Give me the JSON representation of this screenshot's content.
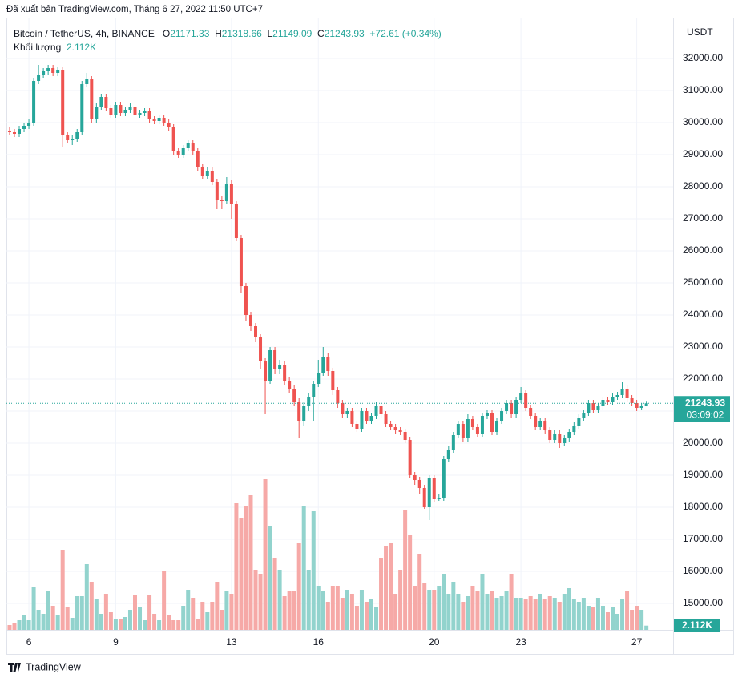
{
  "published": "Đã xuất bản TradingView.com, Tháng 6 27, 2022 11:50 UTC+7",
  "footer": "TradingView",
  "chart_data": {
    "type": "candlestick",
    "symbol": "Bitcoin / TetherUS, 4h, BINANCE",
    "ohlc_letters": [
      "O",
      "H",
      "L",
      "C"
    ],
    "change": "+72.61 (+0.34%)",
    "volume_title": "Khối lượng",
    "volume_label": "2.112K",
    "currency": "USDT",
    "countdown": "03:09:02",
    "up_color": "#26a69a",
    "down_color": "#ef5350",
    "volume_up_color": "#92d3cd",
    "volume_down_color": "#f6a9a7",
    "grid": true,
    "xlim": [
      -0.66,
      137.54
    ],
    "xticks": [
      {
        "value": 4,
        "label": "6"
      },
      {
        "value": 22,
        "label": "9"
      },
      {
        "value": 46,
        "label": "13"
      },
      {
        "value": 64,
        "label": "16"
      },
      {
        "value": 88,
        "label": "20"
      },
      {
        "value": 106,
        "label": "23"
      },
      {
        "value": 130,
        "label": "27"
      }
    ],
    "ylim": [
      14175,
      33275
    ],
    "yticks": [
      {
        "value": 15000,
        "label": "15000.00"
      },
      {
        "value": 16000,
        "label": "16000.00"
      },
      {
        "value": 17000,
        "label": "17000.00"
      },
      {
        "value": 18000,
        "label": "18000.00"
      },
      {
        "value": 19000,
        "label": "19000.00"
      },
      {
        "value": 20000,
        "label": "20000.00"
      },
      {
        "value": 21000,
        "label": "21000.00"
      },
      {
        "value": 22000,
        "label": "22000.00"
      },
      {
        "value": 23000,
        "label": "23000.00"
      },
      {
        "value": 24000,
        "label": "24000.00"
      },
      {
        "value": 25000,
        "label": "25000.00"
      },
      {
        "value": 26000,
        "label": "26000.00"
      },
      {
        "value": 27000,
        "label": "27000.00"
      },
      {
        "value": 28000,
        "label": "28000.00"
      },
      {
        "value": 29000,
        "label": "29000.00"
      },
      {
        "value": 30000,
        "label": "30000.00"
      },
      {
        "value": 31000,
        "label": "31000.00"
      },
      {
        "value": 32000,
        "label": "32000.00"
      }
    ],
    "volume_ylim": [
      0,
      305600
    ],
    "open": [
      29750,
      29700,
      29650,
      29800,
      29900,
      30000,
      31300,
      31500,
      31600,
      31700,
      31550,
      31650,
      29600,
      29450,
      29500,
      29700,
      31200,
      31350,
      30100,
      30500,
      30800,
      30450,
      30250,
      30550,
      30300,
      30400,
      30500,
      30250,
      30300,
      30350,
      30100,
      30050,
      30150,
      30000,
      29850,
      29100,
      29000,
      29200,
      29350,
      29100,
      28600,
      28350,
      28500,
      28150,
      27600,
      27550,
      28100,
      27450,
      26400,
      24900,
      24000,
      23650,
      23300,
      22550,
      21950,
      22900,
      22300,
      22450,
      21950,
      21700,
      21300,
      20700,
      21150,
      21450,
      21850,
      22200,
      22700,
      22250,
      21650,
      21250,
      20900,
      21000,
      20600,
      20450,
      21000,
      20700,
      20850,
      21150,
      20900,
      20600,
      20500,
      20400,
      20350,
      20100,
      19000,
      18850,
      18600,
      18000,
      18900,
      18250,
      18300,
      19500,
      19800,
      20250,
      20600,
      20150,
      20750,
      20500,
      20300,
      20850,
      20950,
      20350,
      20700,
      21000,
      21250,
      20900,
      21350,
      21550,
      21100,
      20850,
      20500,
      20700,
      20400,
      20100,
      20300,
      20000,
      20150,
      20350,
      20550,
      20800,
      20950,
      21250,
      21050,
      21150,
      21350,
      21300,
      21450,
      21500,
      21700,
      21400,
      21250,
      21100,
      21171.33
    ],
    "high": [
      29850,
      29800,
      29900,
      30000,
      30100,
      31400,
      31800,
      31700,
      31800,
      31800,
      31750,
      31750,
      29700,
      29600,
      29800,
      31300,
      31550,
      31450,
      30600,
      30900,
      30900,
      30550,
      30650,
      30650,
      30500,
      30600,
      30600,
      30400,
      30450,
      30450,
      30200,
      30250,
      30250,
      30100,
      29950,
      29200,
      29300,
      29450,
      29450,
      29200,
      28700,
      28600,
      28600,
      28250,
      27700,
      28300,
      28200,
      27550,
      26500,
      25000,
      24100,
      23750,
      23400,
      22650,
      23000,
      23000,
      22600,
      22550,
      22050,
      21800,
      21400,
      21300,
      21550,
      21950,
      22600,
      23000,
      22800,
      22350,
      21750,
      21350,
      21100,
      21100,
      20700,
      21100,
      21100,
      20950,
      21300,
      21250,
      21000,
      20700,
      20600,
      20500,
      20450,
      20200,
      19100,
      18950,
      18700,
      19000,
      19000,
      18400,
      19600,
      19900,
      20350,
      20700,
      20700,
      20900,
      20850,
      20600,
      20950,
      21050,
      21050,
      20800,
      21100,
      21350,
      21350,
      21450,
      21750,
      21650,
      21200,
      20950,
      20800,
      20800,
      20500,
      20400,
      20400,
      20250,
      20450,
      20650,
      20900,
      21050,
      21350,
      21350,
      21250,
      21450,
      21450,
      21550,
      21600,
      21900,
      21800,
      21500,
      21350,
      21250,
      21318.66
    ],
    "low": [
      29600,
      29550,
      29550,
      29700,
      29800,
      29900,
      31200,
      31400,
      31500,
      31450,
      31450,
      29250,
      29350,
      29300,
      29400,
      29600,
      31100,
      30000,
      30000,
      30400,
      30350,
      30150,
      30150,
      30200,
      30200,
      30300,
      30150,
      30150,
      30200,
      30000,
      29950,
      29950,
      29900,
      29750,
      29000,
      28900,
      28900,
      29100,
      29000,
      28500,
      28250,
      28250,
      28050,
      27300,
      27300,
      27450,
      27000,
      26300,
      24700,
      23800,
      23500,
      23150,
      22300,
      20900,
      21850,
      22150,
      22150,
      21800,
      21550,
      21150,
      20150,
      20550,
      21000,
      20700,
      21750,
      22100,
      22100,
      21500,
      21100,
      20800,
      20800,
      20500,
      20350,
      20350,
      20600,
      20600,
      20750,
      20800,
      20500,
      20400,
      20300,
      20250,
      20000,
      18900,
      18700,
      18400,
      17950,
      17600,
      18150,
      18200,
      18200,
      19400,
      19700,
      20150,
      20050,
      20050,
      20400,
      20200,
      20200,
      20750,
      20250,
      20250,
      20600,
      20900,
      20800,
      20800,
      21250,
      21000,
      20750,
      20400,
      20400,
      20300,
      20000,
      20000,
      19850,
      19900,
      20050,
      20250,
      20450,
      20700,
      20850,
      20950,
      20950,
      21050,
      21200,
      21200,
      21350,
      21400,
      21300,
      21150,
      21000,
      21050,
      21149.09
    ],
    "close": [
      29700,
      29650,
      29800,
      29900,
      30000,
      31300,
      31500,
      31600,
      31700,
      31550,
      31650,
      29600,
      29450,
      29500,
      29700,
      31200,
      31350,
      30100,
      30500,
      30800,
      30450,
      30250,
      30550,
      30300,
      30400,
      30500,
      30250,
      30300,
      30350,
      30100,
      30050,
      30150,
      30000,
      29850,
      29100,
      29000,
      29200,
      29350,
      29100,
      28600,
      28350,
      28500,
      28150,
      27600,
      27550,
      28100,
      27450,
      26400,
      24900,
      24000,
      23650,
      23300,
      22550,
      21950,
      22900,
      22300,
      22450,
      21950,
      21700,
      21300,
      20700,
      21150,
      21450,
      21850,
      22200,
      22700,
      22250,
      21650,
      21250,
      20900,
      21000,
      20600,
      20450,
      21000,
      20700,
      20850,
      21150,
      20900,
      20600,
      20500,
      20400,
      20350,
      20100,
      19000,
      18850,
      18600,
      18000,
      18900,
      18250,
      18300,
      19500,
      19800,
      20250,
      20600,
      20150,
      20750,
      20500,
      20300,
      20850,
      20950,
      20350,
      20700,
      21000,
      21250,
      20900,
      21350,
      21550,
      21100,
      20850,
      20500,
      20700,
      20400,
      20100,
      20300,
      20000,
      20150,
      20350,
      20550,
      20800,
      20950,
      21250,
      21050,
      21150,
      21350,
      21300,
      21450,
      21500,
      21700,
      21400,
      21250,
      21100,
      21171.33,
      21243.93
    ],
    "volume": [
      2400,
      3200,
      4800,
      7200,
      4800,
      21200,
      10000,
      8000,
      19200,
      12000,
      7200,
      40000,
      11200,
      6000,
      16800,
      16800,
      32800,
      24000,
      15200,
      8000,
      18000,
      8800,
      5600,
      5600,
      6400,
      10000,
      17600,
      11200,
      4800,
      17600,
      8000,
      4800,
      29200,
      7200,
      4800,
      4800,
      12000,
      20000,
      16000,
      5600,
      14000,
      8800,
      14000,
      24000,
      10000,
      19200,
      18000,
      63200,
      56000,
      62000,
      67200,
      30000,
      28000,
      75200,
      52000,
      36000,
      30000,
      16800,
      19200,
      19200,
      43200,
      62000,
      30000,
      59200,
      22000,
      19200,
      14000,
      22000,
      22000,
      16000,
      20000,
      18000,
      12000,
      20000,
      14000,
      15200,
      11200,
      36000,
      42000,
      43200,
      18000,
      30000,
      60000,
      47200,
      22000,
      38000,
      23200,
      20000,
      20000,
      22000,
      28000,
      18000,
      24000,
      18000,
      14000,
      16800,
      22000,
      19200,
      28000,
      18000,
      19200,
      16000,
      16800,
      19200,
      28000,
      16000,
      16000,
      15200,
      16800,
      15200,
      18000,
      15200,
      16800,
      16000,
      14000,
      18000,
      20800,
      15200,
      14000,
      16000,
      12000,
      11200,
      16000,
      12000,
      8800,
      11200,
      8000,
      15200,
      19200,
      10000,
      12000,
      10000,
      2112
    ]
  }
}
